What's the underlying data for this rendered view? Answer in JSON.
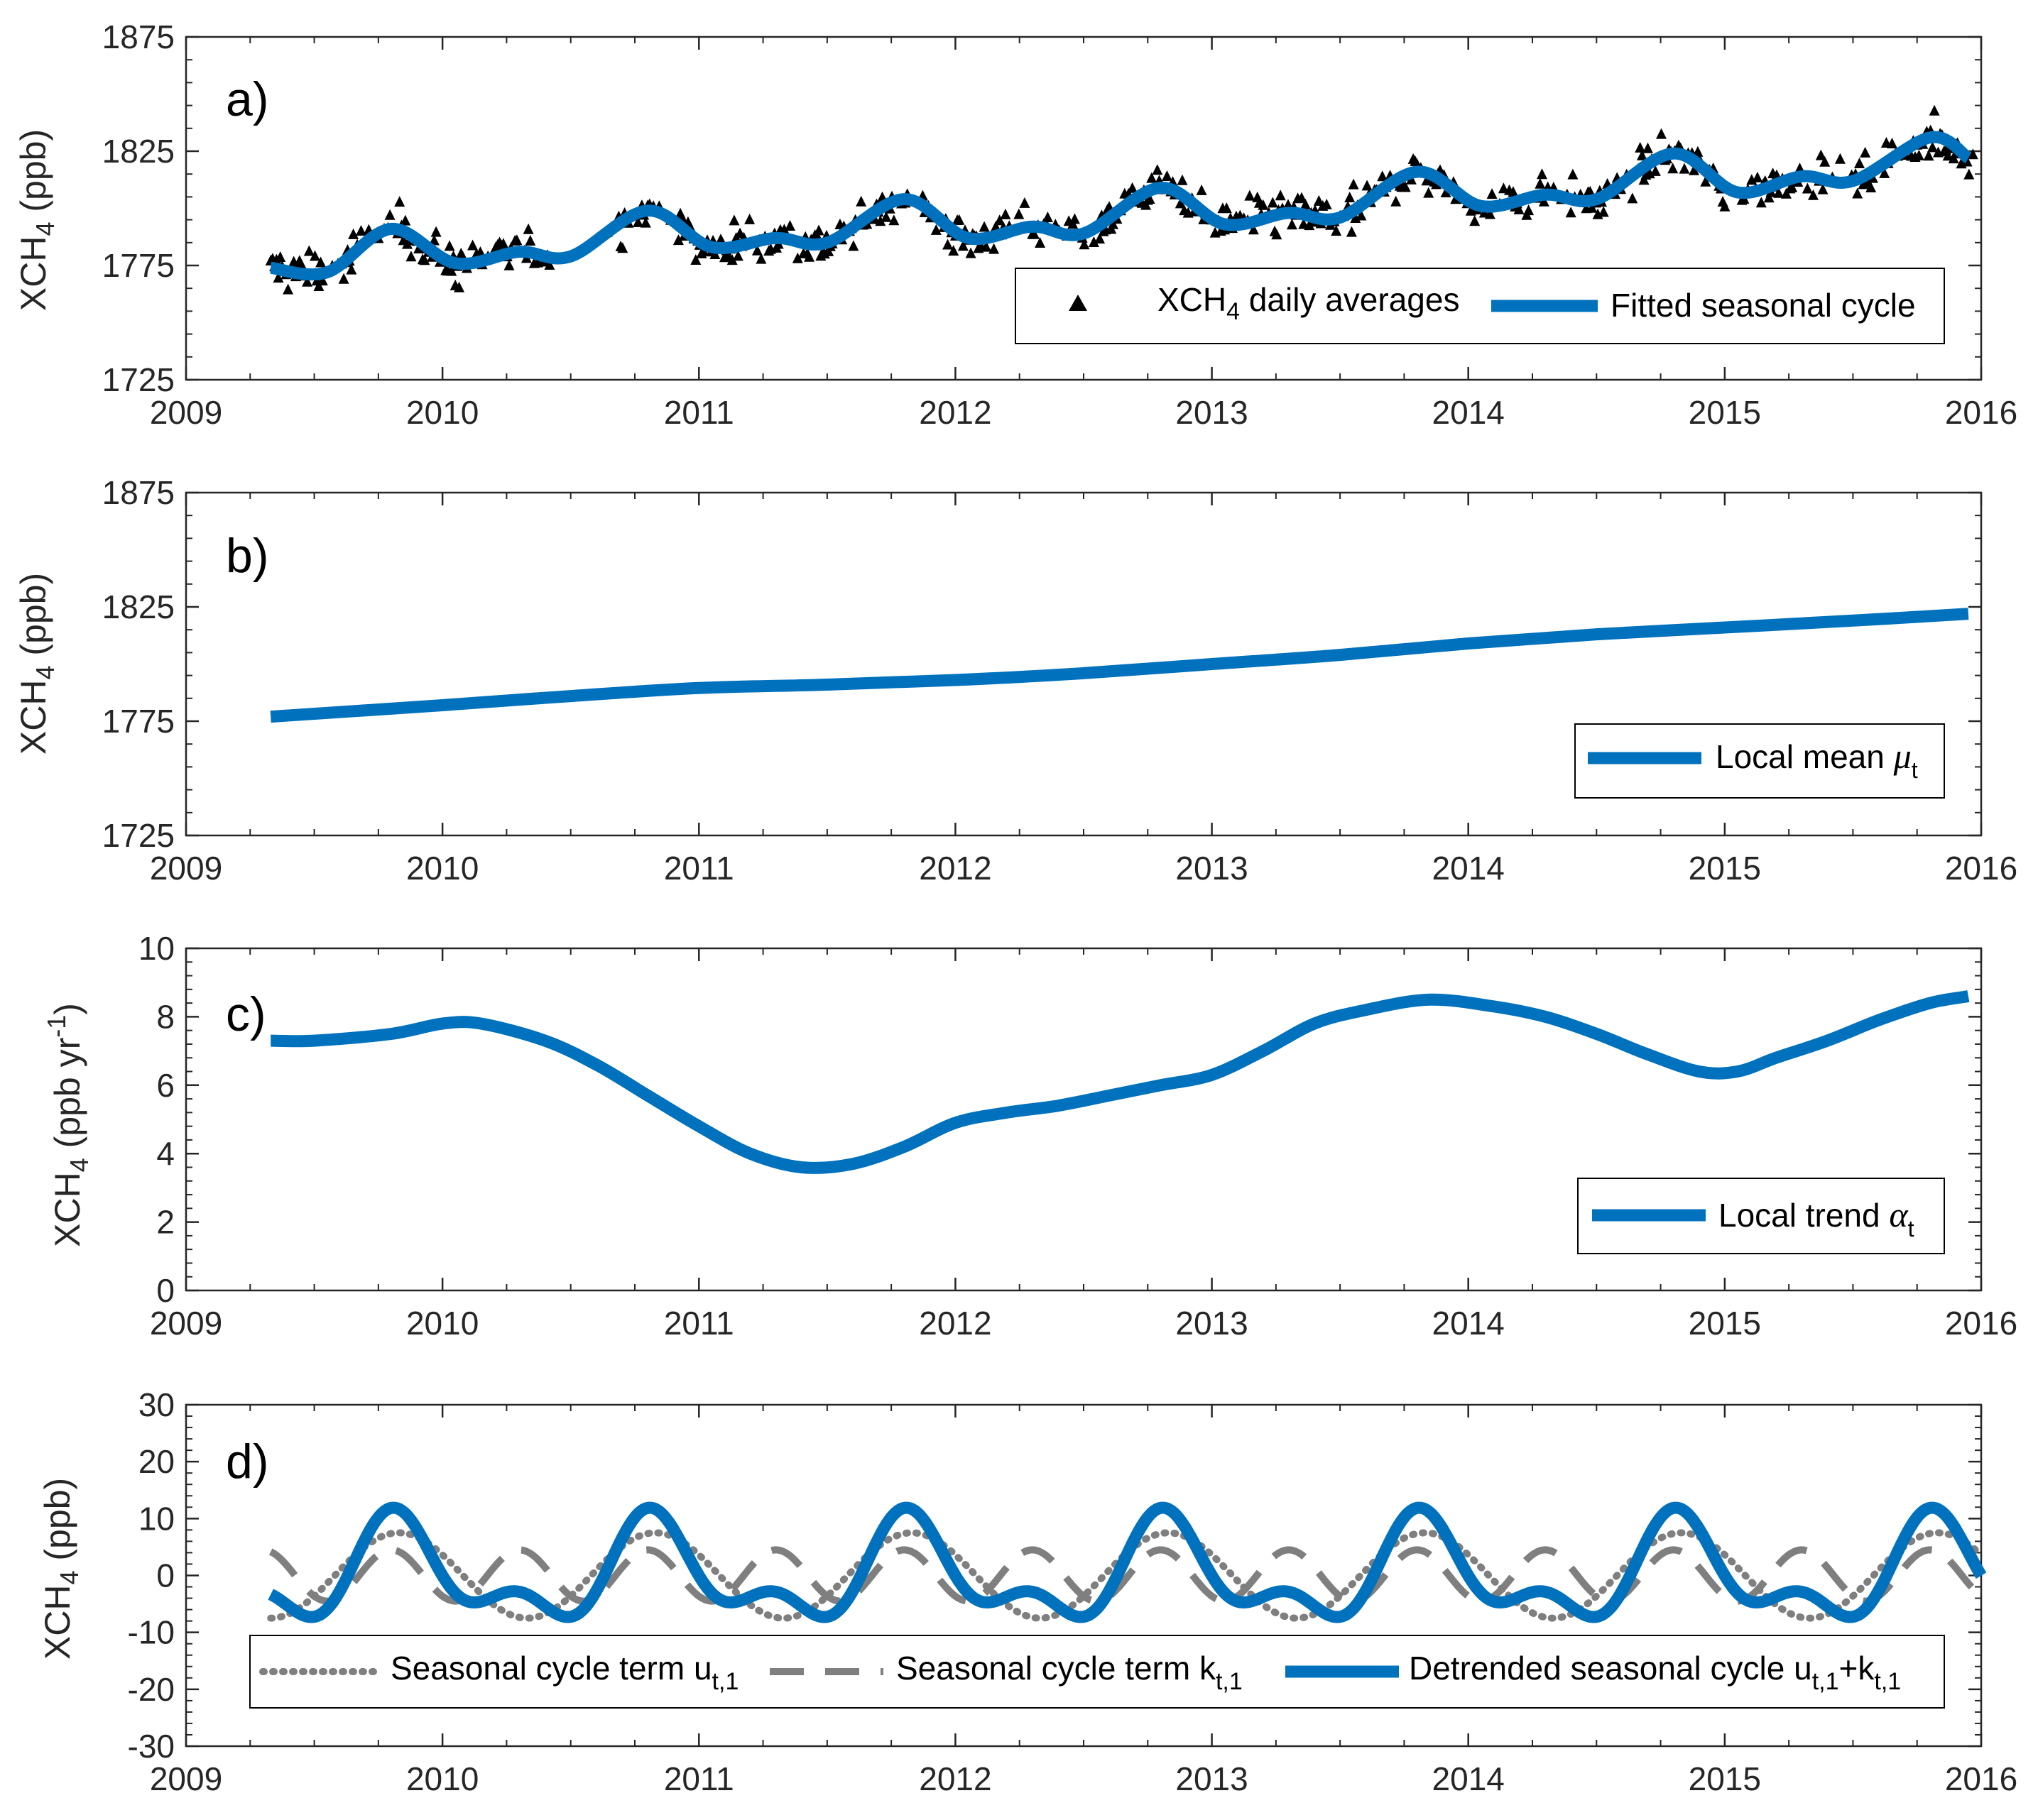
{
  "figure": {
    "x_ticks": [
      "2009",
      "2010",
      "2011",
      "2012",
      "2013",
      "2014",
      "2015",
      "2016"
    ]
  },
  "colors": {
    "blue": "#0072BD",
    "grey": "#7F7F7F",
    "black": "#000000",
    "axis": "#262626"
  },
  "chart_data": [
    {
      "id": "a",
      "type": "scatter",
      "panel_label": "a)",
      "ylabel_base": "XCH",
      "ylabel_sub": "4",
      "ylabel_suffix": " (ppb)",
      "xlim": [
        2009,
        2016
      ],
      "ylim": [
        1725,
        1875
      ],
      "yticks": [
        "1725",
        "1775",
        "1825",
        "1875"
      ],
      "legend": {
        "placement": "lower-right",
        "entries": [
          {
            "marker": "triangle",
            "label_base": "XCH",
            "label_sub": "4",
            "label_suffix": " daily averages"
          },
          {
            "marker": "line",
            "label": "Fitted seasonal cycle"
          }
        ]
      },
      "scatter_series": {
        "name": "XCH4 daily averages",
        "description_note": "approx. 900 daily averages, scattered around the fitted curve between 1750 and 1860 ppb"
      },
      "series": [
        {
          "name": "Fitted seasonal cycle",
          "x": [
            2009.33,
            2009.55,
            2009.8,
            2010.05,
            2010.3,
            2010.5,
            2010.8,
            2011.05,
            2011.3,
            2011.5,
            2011.8,
            2012.05,
            2012.3,
            2012.5,
            2012.8,
            2013.05,
            2013.3,
            2013.5,
            2013.8,
            2014.05,
            2014.3,
            2014.5,
            2014.8,
            2015.05,
            2015.3,
            2015.5,
            2015.8,
            2015.95
          ],
          "values": [
            1774,
            1772,
            1791,
            1776,
            1781,
            1779,
            1799,
            1783,
            1787,
            1785,
            1804,
            1787,
            1792,
            1789,
            1809,
            1793,
            1798,
            1796,
            1816,
            1801,
            1806,
            1804,
            1824,
            1807,
            1814,
            1812,
            1831,
            1822
          ]
        }
      ]
    },
    {
      "id": "b",
      "type": "line",
      "panel_label": "b)",
      "ylabel_base": "XCH",
      "ylabel_sub": "4",
      "ylabel_suffix": " (ppb)",
      "xlim": [
        2009,
        2016
      ],
      "ylim": [
        1725,
        1875
      ],
      "yticks": [
        "1725",
        "1775",
        "1825",
        "1875"
      ],
      "legend": {
        "placement": "lower-right",
        "entries": [
          {
            "marker": "line",
            "label": "Local mean ",
            "symbol": "μ",
            "symbol_sub": "t"
          }
        ]
      },
      "series": [
        {
          "name": "Local mean μt",
          "x": [
            2009.33,
            2010,
            2010.5,
            2011,
            2011.5,
            2012,
            2012.5,
            2013,
            2013.5,
            2014,
            2014.5,
            2015,
            2015.5,
            2015.95
          ],
          "values": [
            1777,
            1782,
            1786,
            1789.5,
            1791,
            1793,
            1796,
            1800,
            1804,
            1809,
            1813,
            1816,
            1819,
            1822
          ]
        }
      ]
    },
    {
      "id": "c",
      "type": "line",
      "panel_label": "c)",
      "ylabel_base": "XCH",
      "ylabel_sub": "4",
      "ylabel_suffix": " (ppb yr",
      "ylabel_sup": "-1",
      "ylabel_end": ")",
      "xlim": [
        2009,
        2016
      ],
      "ylim": [
        0,
        10
      ],
      "yticks": [
        "0",
        "2",
        "4",
        "6",
        "8",
        "10"
      ],
      "legend": {
        "placement": "lower-right",
        "entries": [
          {
            "marker": "line",
            "label": "Local trend ",
            "symbol": "α",
            "symbol_sub": "t"
          }
        ]
      },
      "series": [
        {
          "name": "Local trend αt",
          "x": [
            2009.33,
            2009.5,
            2009.8,
            2010.0,
            2010.15,
            2010.4,
            2010.6,
            2010.8,
            2011.0,
            2011.2,
            2011.4,
            2011.6,
            2011.8,
            2012.0,
            2012.2,
            2012.4,
            2012.6,
            2012.8,
            2013.0,
            2013.2,
            2013.4,
            2013.6,
            2013.85,
            2014.1,
            2014.3,
            2014.5,
            2014.7,
            2014.9,
            2015.05,
            2015.2,
            2015.4,
            2015.6,
            2015.8,
            2015.95
          ],
          "values": [
            7.3,
            7.3,
            7.5,
            7.8,
            7.8,
            7.3,
            6.6,
            5.7,
            4.8,
            4.0,
            3.6,
            3.7,
            4.2,
            4.9,
            5.2,
            5.4,
            5.7,
            6.0,
            6.3,
            7.0,
            7.8,
            8.2,
            8.5,
            8.3,
            8.0,
            7.5,
            6.9,
            6.4,
            6.4,
            6.8,
            7.3,
            7.9,
            8.4,
            8.6
          ]
        }
      ]
    },
    {
      "id": "d",
      "type": "line",
      "panel_label": "d)",
      "ylabel_base": "XCH",
      "ylabel_sub": "4",
      "ylabel_suffix": " (ppb)",
      "xlim": [
        2009,
        2016
      ],
      "ylim": [
        -30,
        30
      ],
      "yticks": [
        "-30",
        "-20",
        "-10",
        "0",
        "10",
        "20",
        "30"
      ],
      "legend": {
        "placement": "bottom",
        "entries": [
          {
            "marker": "dotted",
            "label": "Seasonal cycle term u",
            "label_sub": "t,1"
          },
          {
            "marker": "dashed",
            "label": "Seasonal cycle term k",
            "label_sub": "t,1"
          },
          {
            "marker": "line",
            "label": "Detrended seasonal cycle u",
            "label_sub": "t,1",
            "label_mid": "+k",
            "label_sub2": "t,1"
          }
        ]
      },
      "series": [
        {
          "name": "Seasonal cycle term u_t,1",
          "style": "dotted",
          "model": "7.5*cos(2π(t-2009.83)), annual harmonic, amplitude ≈ 7.5 ppb, peak ≈ Oct/Nov",
          "x_range": [
            2009.33,
            2016
          ]
        },
        {
          "name": "Seasonal cycle term k_t,1",
          "style": "dashed",
          "model": "4.5*cos(4π(t-2009.80)), semi-annual harmonic, amplitude ≈ 4.5 ppb",
          "x_range": [
            2009.33,
            2016
          ]
        },
        {
          "name": "Detrended seasonal cycle u_t,1+k_t,1",
          "style": "solid",
          "model": "sum of the two terms; max ≈ 12 ppb, min ≈ -6 ppb",
          "x_range": [
            2009.33,
            2016
          ]
        }
      ]
    }
  ]
}
